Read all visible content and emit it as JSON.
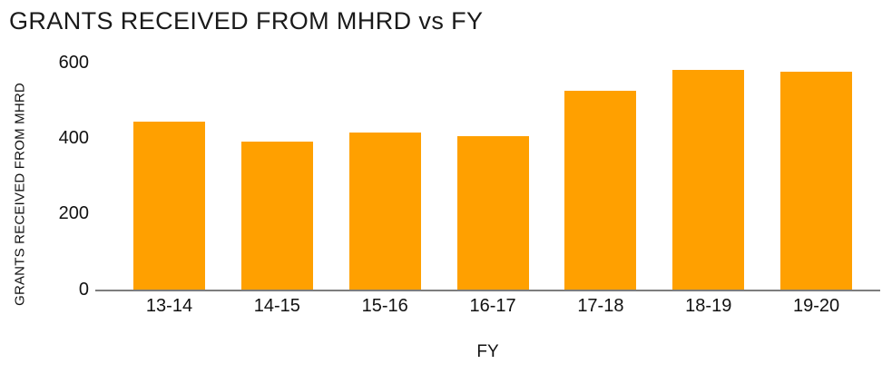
{
  "chart_data": {
    "type": "bar",
    "title": "GRANTS RECEIVED FROM MHRD vs FY",
    "xlabel": "FY",
    "ylabel": "GRANTS RECEIVED FROM MHRD",
    "categories": [
      "13-14",
      "14-15",
      "15-16",
      "16-17",
      "17-18",
      "18-19",
      "19-20"
    ],
    "values": [
      445,
      390,
      415,
      405,
      525,
      580,
      575
    ],
    "yticks": [
      0,
      200,
      400,
      600
    ],
    "ylim": [
      0,
      600
    ],
    "bar_color": "#FFA000",
    "axis_line_color": "#7D7D7D",
    "text_color": "#1A1A1A",
    "grid": false,
    "legend": "none"
  }
}
